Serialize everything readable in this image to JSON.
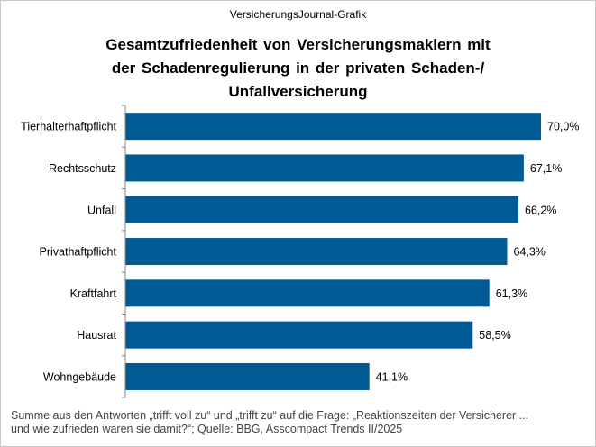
{
  "header": {
    "source": "VersicherungsJournal-Grafik",
    "title_lines": [
      "Gesamtzufriedenheit von Versicherungsmaklern mit",
      "der Schadenregulierung in der privaten Schaden-/",
      "Unfallversicherung"
    ]
  },
  "chart_data": {
    "type": "bar",
    "orientation": "horizontal",
    "categories": [
      "Tierhalterhaftpflicht",
      "Rechtsschutz",
      "Unfall",
      "Privathaftpflicht",
      "Kraftfahrt",
      "Hausrat",
      "Wohngebäude"
    ],
    "values": [
      70.0,
      67.1,
      66.2,
      64.3,
      61.3,
      58.5,
      41.1
    ],
    "data_labels": [
      "70,0%",
      "67,1%",
      "66,2%",
      "64,3%",
      "61,3%",
      "58,5%",
      "41,1%"
    ],
    "xlim": [
      0,
      70.0
    ],
    "grid": false,
    "legend": "none",
    "bar_color": "#005a94"
  },
  "footnote": {
    "lines": [
      "Summe aus den Antworten „trifft voll zu“ und „trifft zu“ auf die Frage: „Reaktionszeiten der Versicherer ...",
      "und wie zufrieden waren sie damit?“; Quelle: BBG, Asscompact Trends II/2025"
    ]
  }
}
